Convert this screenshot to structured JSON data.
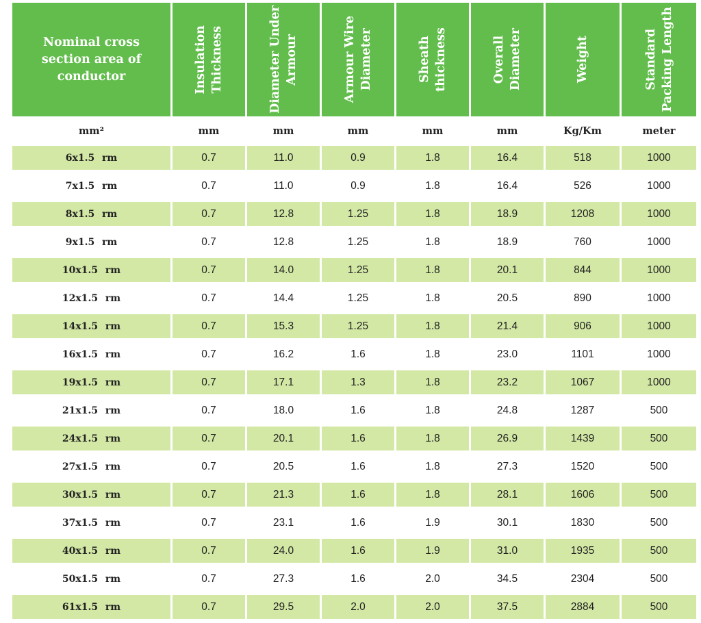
{
  "header": {
    "col1": "Nominal cross section area of conductor",
    "col2": "Insulation\nThickness",
    "col3": "Diameter Under\nArmour",
    "col4": "Armour Wire\nDiameter",
    "col5": "Sheath thickness",
    "col6": "Overall\nDiameter",
    "col7": "Weight",
    "col8": "Standard\nPacking Length"
  },
  "units": {
    "col1": "mm²",
    "col2": "mm",
    "col3": "mm",
    "col4": "mm",
    "col5": "mm",
    "col6": "mm",
    "col7": "Kg/Km",
    "col8": "meter"
  },
  "rows": [
    [
      "6x1.5 rm",
      "0.7",
      "11.0",
      "0.9",
      "1.8",
      "16.4",
      "518",
      "1000"
    ],
    [
      "7x1.5 rm",
      "0.7",
      "11.0",
      "0.9",
      "1.8",
      "16.4",
      "526",
      "1000"
    ],
    [
      "8x1.5 rm",
      "0.7",
      "12.8",
      "1.25",
      "1.8",
      "18.9",
      "1208",
      "1000"
    ],
    [
      "9x1.5 rm",
      "0.7",
      "12.8",
      "1.25",
      "1.8",
      "18.9",
      "760",
      "1000"
    ],
    [
      "10x1.5 rm",
      "0.7",
      "14.0",
      "1.25",
      "1.8",
      "20.1",
      "844",
      "1000"
    ],
    [
      "12x1.5 rm",
      "0.7",
      "14.4",
      "1.25",
      "1.8",
      "20.5",
      "890",
      "1000"
    ],
    [
      "14x1.5 rm",
      "0.7",
      "15.3",
      "1.25",
      "1.8",
      "21.4",
      "906",
      "1000"
    ],
    [
      "16x1.5 rm",
      "0.7",
      "16.2",
      "1.6",
      "1.8",
      "23.0",
      "1101",
      "1000"
    ],
    [
      "19x1.5 rm",
      "0.7",
      "17.1",
      "1.3",
      "1.8",
      "23.2",
      "1067",
      "1000"
    ],
    [
      "21x1.5 rm",
      "0.7",
      "18.0",
      "1.6",
      "1.8",
      "24.8",
      "1287",
      "500"
    ],
    [
      "24x1.5 rm",
      "0.7",
      "20.1",
      "1.6",
      "1.8",
      "26.9",
      "1439",
      "500"
    ],
    [
      "27x1.5 rm",
      "0.7",
      "20.5",
      "1.6",
      "1.8",
      "27.3",
      "1520",
      "500"
    ],
    [
      "30x1.5 rm",
      "0.7",
      "21.3",
      "1.6",
      "1.8",
      "28.1",
      "1606",
      "500"
    ],
    [
      "37x1.5 rm",
      "0.7",
      "23.1",
      "1.6",
      "1.9",
      "30.1",
      "1830",
      "500"
    ],
    [
      "40x1.5 rm",
      "0.7",
      "24.0",
      "1.6",
      "1.9",
      "31.0",
      "1935",
      "500"
    ],
    [
      "50x1.5 rm",
      "0.7",
      "27.3",
      "1.6",
      "2.0",
      "34.5",
      "2304",
      "500"
    ],
    [
      "61x1.5 rm",
      "0.7",
      "29.5",
      "2.0",
      "2.0",
      "37.5",
      "2884",
      "500"
    ]
  ],
  "colors": {
    "header_green": "#62bd4c",
    "row_shade": "#d3e8a5"
  }
}
